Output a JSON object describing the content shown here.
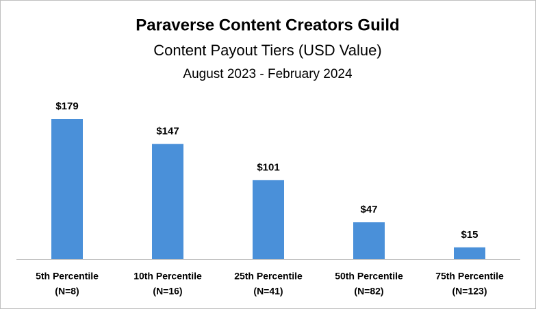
{
  "chart_data": {
    "type": "bar",
    "title": "Paraverse Content Creators Guild",
    "subtitle": "Content Payout Tiers (USD Value)",
    "date_range": "August 2023 - February 2024",
    "categories": [
      [
        "5th Percentile",
        "(N=8)"
      ],
      [
        "10th Percentile",
        "(N=16)"
      ],
      [
        "25th Percentile",
        "(N=41)"
      ],
      [
        "50th Percentile",
        "(N=82)"
      ],
      [
        "75th Percentile",
        "(N=123)"
      ]
    ],
    "values": [
      179,
      147,
      101,
      47,
      15
    ],
    "value_labels": [
      "$179",
      "$147",
      "$101",
      "$47",
      "$15"
    ],
    "color": "#4a90d9"
  }
}
